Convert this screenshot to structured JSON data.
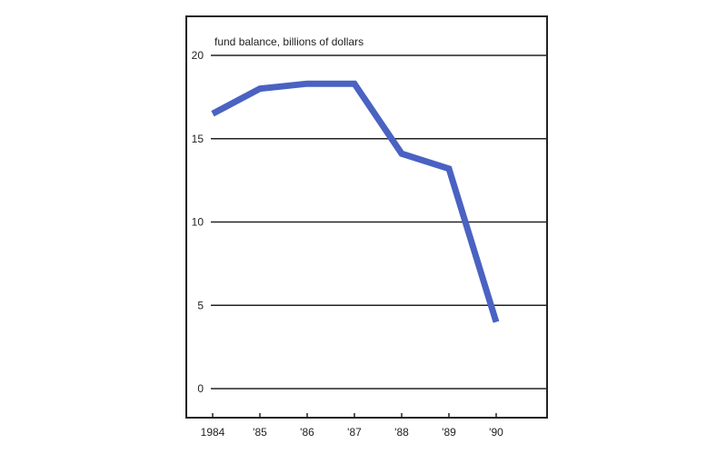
{
  "colors": {
    "line": "#4a62c2",
    "frame": "#222222",
    "grid": "#222222",
    "background": "#ffffff"
  },
  "chart_data": {
    "type": "line",
    "title": "",
    "xlabel": "",
    "ylabel": "fund balance, billions of dollars",
    "categories": [
      "1984",
      "'85",
      "'86",
      "'87",
      "'88",
      "'89",
      "'90"
    ],
    "series": [
      {
        "values": [
          16.5,
          18.0,
          18.3,
          18.3,
          14.1,
          13.2,
          4.0
        ]
      }
    ],
    "ylim": [
      0,
      20
    ],
    "yticks": [
      0,
      5,
      10,
      15,
      20
    ],
    "ytick_labels": [
      "0",
      "5",
      "10",
      "15",
      "20"
    ],
    "grid": true,
    "legend": "none"
  }
}
